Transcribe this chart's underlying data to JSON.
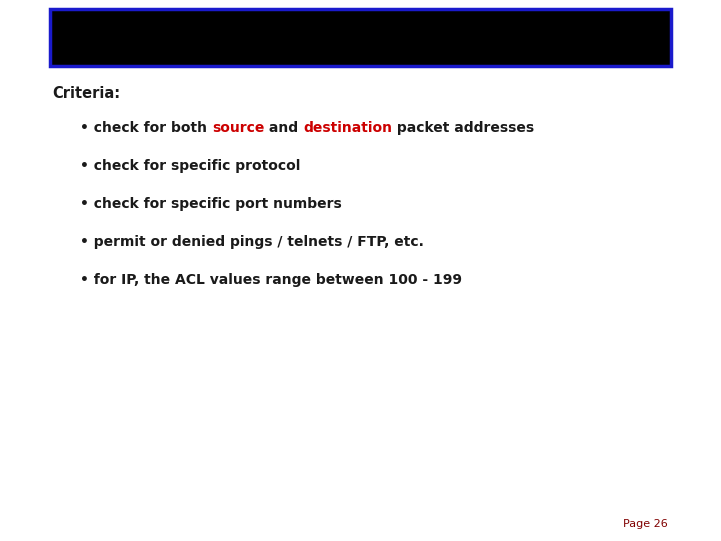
{
  "background_color": "#ffffff",
  "header_box_color": "#000000",
  "header_box_border_color": "#1a1acc",
  "page_label": "Page 26",
  "page_color": "#800000",
  "page_fontsize": 8,
  "criteria_label": "Criteria:",
  "criteria_fontsize": 10.5,
  "bullet_fontsize": 10,
  "bullets": [
    [
      {
        "text": "• check for both ",
        "color": "#1a1a1a"
      },
      {
        "text": "source",
        "color": "#cc0000"
      },
      {
        "text": " and ",
        "color": "#1a1a1a"
      },
      {
        "text": "destination",
        "color": "#cc0000"
      },
      {
        "text": " packet addresses",
        "color": "#1a1a1a"
      }
    ],
    [
      {
        "text": "• check for specific protocol",
        "color": "#1a1a1a"
      }
    ],
    [
      {
        "text": "• check for specific port numbers",
        "color": "#1a1a1a"
      }
    ],
    [
      {
        "text": "• permit or denied pings / telnets / FTP, etc.",
        "color": "#1a1a1a"
      }
    ],
    [
      {
        "text": "• for IP, the ACL values range between 100 - 199",
        "color": "#1a1a1a"
      }
    ]
  ]
}
